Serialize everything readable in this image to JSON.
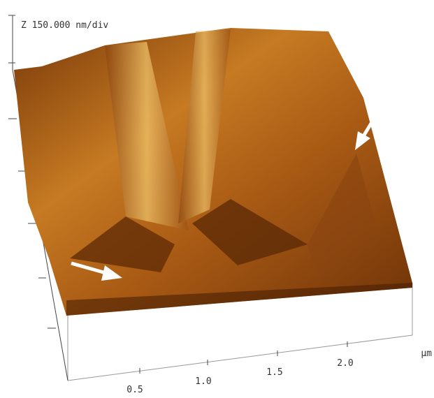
{
  "z_scale": "Z  150.000 nm/div",
  "x_axis": {
    "unit": "µm",
    "ticks": [
      "0.5",
      "1.0",
      "1.5",
      "2.0"
    ]
  }
}
